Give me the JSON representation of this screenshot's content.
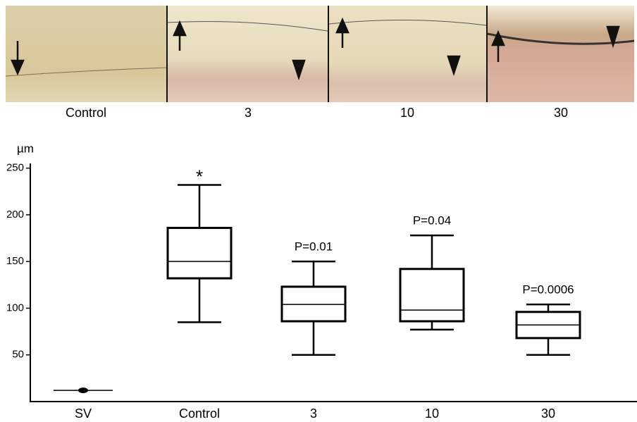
{
  "panels": {
    "labels": [
      "Control",
      "3",
      "10",
      "30"
    ]
  },
  "chart_data": {
    "type": "box",
    "y_label": "µm",
    "categories": [
      "SV",
      "Control",
      "3",
      "10",
      "30"
    ],
    "boxes": [
      {
        "value": 12
      },
      {
        "min": 85,
        "q1": 132,
        "median": 150,
        "q3": 186,
        "max": 232,
        "annotation": "*"
      },
      {
        "min": 50,
        "q1": 86,
        "median": 104,
        "q3": 123,
        "max": 150,
        "annotation": "P=0.01"
      },
      {
        "min": 77,
        "q1": 86,
        "median": 98,
        "q3": 142,
        "max": 178,
        "annotation": "P=0.04"
      },
      {
        "min": 50,
        "q1": 68,
        "median": 82,
        "q3": 96,
        "max": 104,
        "annotation": "P=0.0006"
      }
    ],
    "ylim": [
      0,
      255
    ],
    "yticks": [
      50,
      100,
      150,
      200,
      250
    ],
    "color": "#000000"
  }
}
